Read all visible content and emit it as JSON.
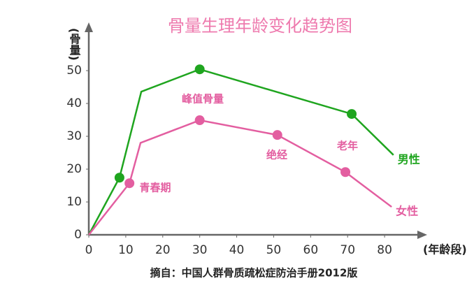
{
  "chart_data": {
    "type": "line",
    "title": "骨量生理年龄变化趋势图",
    "y_label": "(骨量)",
    "x_label": "(年龄段)",
    "source": "摘自：中国人群骨质疏松症防治手册2012版",
    "xlim": [
      0,
      90
    ],
    "ylim": [
      0,
      63
    ],
    "xticks": [
      0,
      10,
      20,
      30,
      40,
      50,
      60,
      70,
      80
    ],
    "yticks": [
      0,
      10,
      20,
      30,
      40,
      50
    ],
    "grid": false,
    "series": [
      {
        "name": "男性",
        "color": "#1fa51f",
        "x": [
          0,
          8.3,
          14.2,
          30,
          71.1,
          82.4
        ],
        "values": [
          0,
          17.4,
          43.6,
          50.4,
          36.8,
          24.3
        ],
        "markers": [
          false,
          true,
          false,
          true,
          true,
          false
        ]
      },
      {
        "name": "女性",
        "color": "#e35ea0",
        "x": [
          0,
          11,
          14,
          30,
          51,
          69.4,
          81.9
        ],
        "values": [
          0,
          15.7,
          28,
          34.9,
          30.4,
          19.1,
          8.5
        ],
        "markers": [
          false,
          true,
          false,
          true,
          true,
          true,
          false
        ]
      }
    ],
    "annotations": [
      "峰值骨量",
      "青春期",
      "绝经",
      "老年"
    ]
  }
}
